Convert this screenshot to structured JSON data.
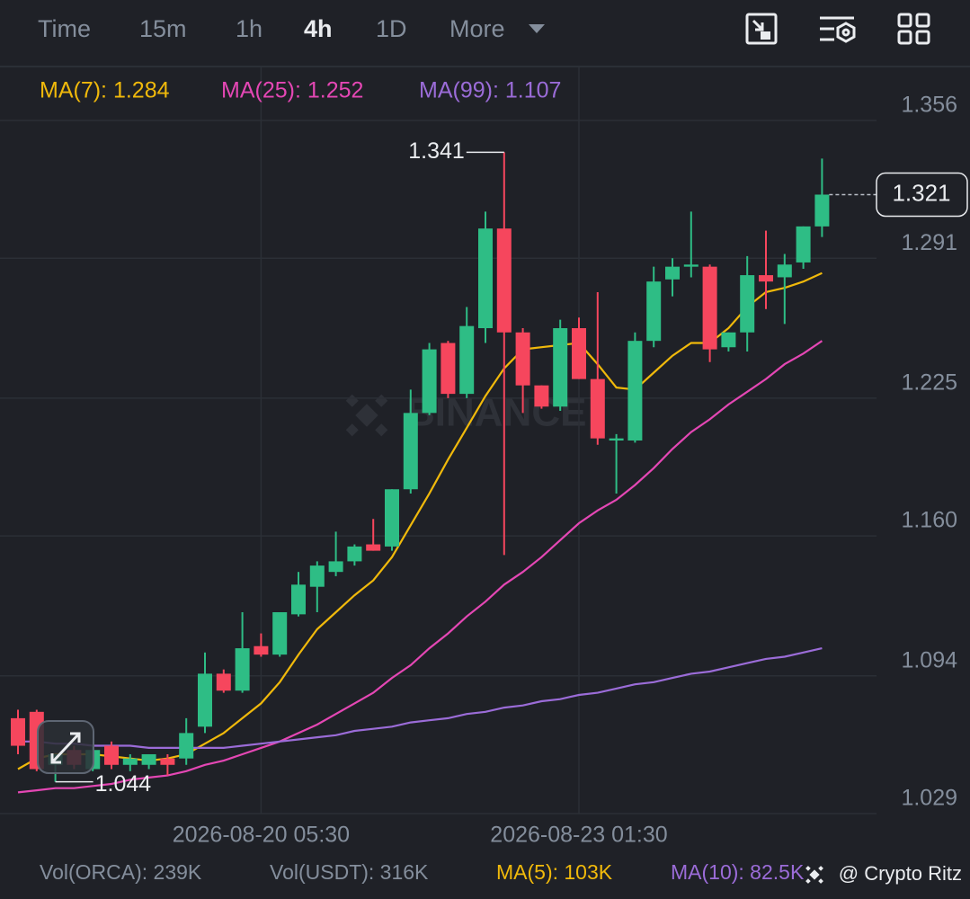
{
  "toolbar": {
    "tabs": [
      "Time",
      "15m",
      "1h",
      "4h",
      "1D",
      "More"
    ],
    "active_index": 3
  },
  "chart_data": {
    "type": "candlestick",
    "watermark": "BINANCE",
    "categories": [
      null,
      null,
      null,
      null,
      null,
      null,
      null,
      null,
      null,
      null,
      null,
      null,
      null,
      "2026-08-20 05:30",
      null,
      null,
      null,
      null,
      null,
      null,
      null,
      null,
      null,
      null,
      null,
      null,
      null,
      null,
      null,
      null,
      "2026-08-23 01:30",
      null,
      null,
      null,
      null,
      null,
      null,
      null,
      null,
      null,
      null,
      null,
      null,
      null
    ],
    "open": [
      1.074,
      1.077,
      1.052,
      1.059,
      1.05,
      1.061,
      1.052,
      1.052,
      1.055,
      1.055,
      1.07,
      1.095,
      1.087,
      1.108,
      1.104,
      1.123,
      1.136,
      1.143,
      1.148,
      1.156,
      1.155,
      1.182,
      1.218,
      1.251,
      1.227,
      1.258,
      1.305,
      1.256,
      1.231,
      1.221,
      1.258,
      1.234,
      1.205,
      1.205,
      1.252,
      1.281,
      1.287,
      1.287,
      1.249,
      1.256,
      1.283,
      1.282,
      1.289,
      1.306
    ],
    "high": [
      1.078,
      1.078,
      1.057,
      1.061,
      1.061,
      1.063,
      1.057,
      1.057,
      1.057,
      1.074,
      1.105,
      1.097,
      1.124,
      1.114,
      1.124,
      1.143,
      1.148,
      1.162,
      1.156,
      1.168,
      1.182,
      1.229,
      1.251,
      1.252,
      1.268,
      1.313,
      1.341,
      1.258,
      1.231,
      1.262,
      1.263,
      1.275,
      1.208,
      1.256,
      1.287,
      1.291,
      1.313,
      1.288,
      1.256,
      1.292,
      1.304,
      1.293,
      1.306,
      1.338
    ],
    "low": [
      1.057,
      1.049,
      1.044,
      1.05,
      1.049,
      1.05,
      1.049,
      1.05,
      1.047,
      1.052,
      1.067,
      1.086,
      1.086,
      1.103,
      1.103,
      1.122,
      1.124,
      1.141,
      1.146,
      1.153,
      1.153,
      1.18,
      1.217,
      1.225,
      1.225,
      1.251,
      1.151,
      1.218,
      1.22,
      1.219,
      1.234,
      1.203,
      1.18,
      1.204,
      1.249,
      1.273,
      1.282,
      1.242,
      1.247,
      1.247,
      1.267,
      1.26,
      1.286,
      1.301
    ],
    "close": [
      1.061,
      1.05,
      1.057,
      1.052,
      1.059,
      1.052,
      1.055,
      1.057,
      1.052,
      1.067,
      1.095,
      1.087,
      1.107,
      1.104,
      1.124,
      1.137,
      1.146,
      1.148,
      1.155,
      1.153,
      1.182,
      1.218,
      1.248,
      1.227,
      1.259,
      1.305,
      1.256,
      1.231,
      1.221,
      1.258,
      1.234,
      1.206,
      1.206,
      1.252,
      1.28,
      1.287,
      1.288,
      1.248,
      1.256,
      1.283,
      1.28,
      1.288,
      1.306,
      1.321
    ],
    "up_color": "#2ebd85",
    "down_color": "#f6465d",
    "series": [
      {
        "name": "MA(7): 1.284",
        "color": "#f0b90b",
        "values": [
          1.05,
          1.055,
          1.057,
          1.057,
          1.057,
          1.056,
          1.055,
          1.054,
          1.055,
          1.057,
          1.062,
          1.067,
          1.074,
          1.081,
          1.091,
          1.104,
          1.116,
          1.124,
          1.132,
          1.139,
          1.15,
          1.165,
          1.18,
          1.196,
          1.211,
          1.226,
          1.239,
          1.248,
          1.249,
          1.25,
          1.251,
          1.241,
          1.23,
          1.229,
          1.237,
          1.245,
          1.251,
          1.251,
          1.258,
          1.268,
          1.275,
          1.277,
          1.28,
          1.284
        ]
      },
      {
        "name": "MA(25): 1.252",
        "color": "#e447b4",
        "values": [
          1.039,
          1.04,
          1.041,
          1.041,
          1.042,
          1.043,
          1.045,
          1.046,
          1.047,
          1.049,
          1.052,
          1.054,
          1.057,
          1.06,
          1.063,
          1.067,
          1.071,
          1.076,
          1.081,
          1.086,
          1.093,
          1.099,
          1.107,
          1.114,
          1.122,
          1.129,
          1.137,
          1.143,
          1.15,
          1.158,
          1.166,
          1.172,
          1.177,
          1.184,
          1.192,
          1.201,
          1.209,
          1.215,
          1.222,
          1.228,
          1.234,
          1.241,
          1.246,
          1.252
        ]
      },
      {
        "name": "MA(99): 1.107",
        "color": "#9b6cd8",
        "values": [
          1.063,
          1.063,
          1.062,
          1.062,
          1.061,
          1.061,
          1.061,
          1.06,
          1.06,
          1.06,
          1.06,
          1.06,
          1.061,
          1.062,
          1.063,
          1.064,
          1.065,
          1.066,
          1.068,
          1.069,
          1.07,
          1.072,
          1.073,
          1.074,
          1.076,
          1.077,
          1.079,
          1.08,
          1.082,
          1.083,
          1.085,
          1.086,
          1.088,
          1.09,
          1.091,
          1.093,
          1.095,
          1.096,
          1.098,
          1.1,
          1.102,
          1.103,
          1.105,
          1.107
        ]
      }
    ],
    "ylim": [
      1.029,
      1.381
    ],
    "yticks": [
      1.356,
      1.291,
      1.225,
      {
        "value": 1.16,
        "label": "1.160"
      },
      1.094,
      1.029
    ],
    "grid": true
  },
  "volume_legend": [
    {
      "text": "Vol(ORCA): 239K",
      "color": "#848e9c"
    },
    {
      "text": "Vol(USDT): 316K",
      "color": "#848e9c"
    },
    {
      "text": "MA(5): 103K",
      "color": "#f0b90b"
    },
    {
      "text": "MA(10): 82.5K",
      "color": "#9b6cd8"
    }
  ],
  "credit": "@ Crypto Ritz"
}
